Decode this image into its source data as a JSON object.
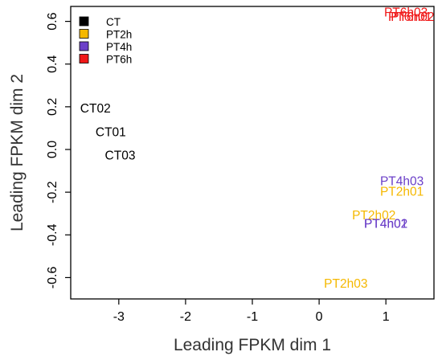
{
  "chart_data": {
    "type": "scatter",
    "title": "",
    "xlabel": "Leading FPKM dim 1",
    "ylabel": "Leading FPKM dim 2",
    "xlim": [
      -3.72,
      1.72
    ],
    "ylim": [
      -0.7,
      0.67
    ],
    "xticks": [
      -3,
      -2,
      -1,
      0,
      1
    ],
    "yticks": [
      -0.6,
      -0.4,
      -0.2,
      0.0,
      0.2,
      0.4,
      0.6
    ],
    "ytick_labels": [
      "-0.6",
      "-0.4",
      "-0.2",
      "0.0",
      "0.2",
      "0.4",
      "0.6"
    ],
    "grid": false,
    "legend_position": "top-left",
    "legend": [
      {
        "name": "CT",
        "color": "#000000"
      },
      {
        "name": "PT2h",
        "color": "#F5B800"
      },
      {
        "name": "PT4h",
        "color": "#6B3FC8"
      },
      {
        "name": "PT6h",
        "color": "#F01818"
      }
    ],
    "points": [
      {
        "label": "CT02",
        "x": -3.35,
        "y": 0.19,
        "color": "#000000"
      },
      {
        "label": "CT01",
        "x": -3.12,
        "y": 0.08,
        "color": "#000000"
      },
      {
        "label": "CT03",
        "x": -2.98,
        "y": -0.03,
        "color": "#000000"
      },
      {
        "label": "PT6h03",
        "x": 1.3,
        "y": 0.64,
        "color": "#F01818"
      },
      {
        "label": "PT6h01",
        "x": 1.36,
        "y": 0.62,
        "color": "#F01818"
      },
      {
        "label": "PT6h02",
        "x": 1.4,
        "y": 0.62,
        "color": "#F01818"
      },
      {
        "label": "PT4h03",
        "x": 1.24,
        "y": -0.15,
        "color": "#6B3FC8"
      },
      {
        "label": "PT2h01",
        "x": 1.24,
        "y": -0.2,
        "color": "#F5B800"
      },
      {
        "label": "PT2h02",
        "x": 0.82,
        "y": -0.31,
        "color": "#F5B800"
      },
      {
        "label": "PT4h01",
        "x": 1.0,
        "y": -0.35,
        "color": "#6B3FC8"
      },
      {
        "label": "PT4h02",
        "x": 1.0,
        "y": -0.35,
        "color": "#6B3FC8"
      },
      {
        "label": "PT2h03",
        "x": 0.4,
        "y": -0.63,
        "color": "#F5B800"
      }
    ]
  }
}
